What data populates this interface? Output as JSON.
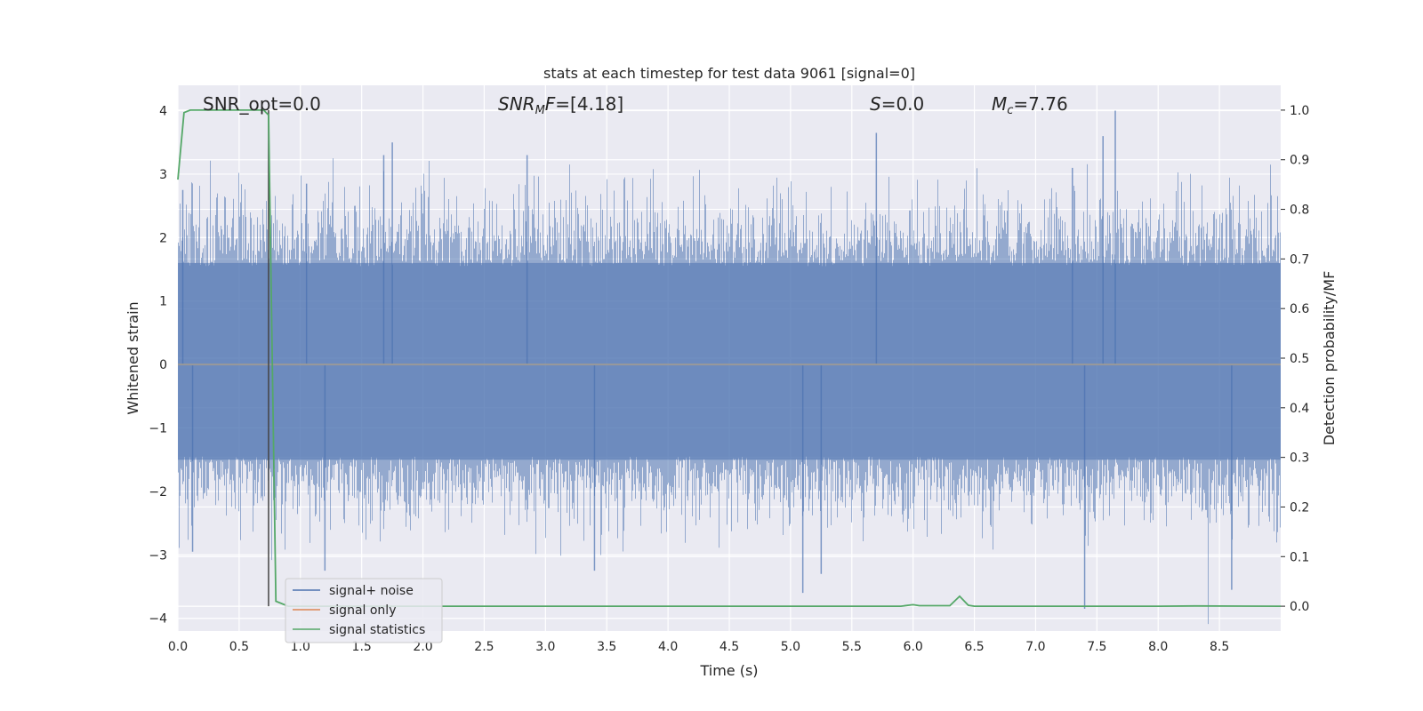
{
  "chart_data": {
    "type": "line",
    "title": "stats at each timestep for test data 9061 [signal=0]",
    "xlabel": "Time (s)",
    "ylabel": "Whitened strain",
    "y2label": "Detection probability/MF",
    "xlim": [
      0.0,
      9.0
    ],
    "ylim": [
      -4.2,
      4.4
    ],
    "y2lim": [
      -0.05,
      1.05
    ],
    "xticks": [
      "0.0",
      "0.5",
      "1.0",
      "1.5",
      "2.0",
      "2.5",
      "3.0",
      "3.5",
      "4.0",
      "4.5",
      "5.0",
      "5.5",
      "6.0",
      "6.5",
      "7.0",
      "7.5",
      "8.0",
      "8.5"
    ],
    "yticks": [
      "4",
      "3",
      "2",
      "1",
      "0",
      "−1",
      "−2",
      "−3",
      "−4"
    ],
    "y2ticks": [
      "1.0",
      "0.9",
      "0.8",
      "0.7",
      "0.6",
      "0.5",
      "0.4",
      "0.3",
      "0.2",
      "0.1",
      "0.0"
    ],
    "grid": true,
    "legend_position": "lower-left",
    "annotations": [
      {
        "name": "snr-opt",
        "text": "SNR_opt=0.0",
        "x": 0.2
      },
      {
        "name": "snr-mf",
        "text": "=[4.18]",
        "italic_prefix": "SNR",
        "subscript": "M",
        "italic_suffix": "F",
        "x": 2.6
      },
      {
        "name": "s-value",
        "text": "=0.0",
        "italic_prefix": "S",
        "x": 5.6
      },
      {
        "name": "mc-value",
        "text": "=7.76",
        "italic_prefix": "M",
        "subscript": "c",
        "x": 6.6
      }
    ],
    "series": [
      {
        "name": "signal+ noise",
        "color": "#4c72b0",
        "axis": "left",
        "sample_rate_hz": 2048,
        "envelope_note": "noise band roughly between -2.2 and 2.4 with peaks",
        "notable_peaks": [
          {
            "x": 0.04,
            "y": 2.75
          },
          {
            "x": 1.05,
            "y": 2.85
          },
          {
            "x": 1.68,
            "y": 3.3
          },
          {
            "x": 1.75,
            "y": 3.5
          },
          {
            "x": 2.85,
            "y": 3.3
          },
          {
            "x": 5.7,
            "y": 3.65
          },
          {
            "x": 7.55,
            "y": 3.6
          },
          {
            "x": 7.65,
            "y": 4.0
          },
          {
            "x": 7.3,
            "y": 3.1
          },
          {
            "x": 0.12,
            "y": -2.95
          },
          {
            "x": 1.2,
            "y": -3.25
          },
          {
            "x": 3.4,
            "y": -3.25
          },
          {
            "x": 5.1,
            "y": -3.6
          },
          {
            "x": 5.25,
            "y": -3.3
          },
          {
            "x": 7.4,
            "y": -3.85
          },
          {
            "x": 8.6,
            "y": -3.55
          }
        ]
      },
      {
        "name": "signal only",
        "color": "#dd8452",
        "axis": "left",
        "values_note": "zero everywhere (signal=0)"
      },
      {
        "name": "signal statistics",
        "color": "#55a868",
        "axis": "right",
        "x": [
          0.0,
          0.05,
          0.1,
          0.2,
          0.3,
          0.4,
          0.5,
          0.6,
          0.66,
          0.7,
          0.74,
          0.77,
          0.8,
          0.9,
          1.0,
          2.0,
          3.0,
          4.0,
          5.0,
          5.9,
          6.0,
          6.05,
          6.3,
          6.38,
          6.45,
          6.5,
          7.0,
          8.0,
          8.3,
          9.0
        ],
        "y": [
          0.86,
          0.995,
          1.0,
          1.0,
          1.0,
          1.0,
          1.0,
          1.0,
          1.0,
          1.0,
          0.99,
          0.5,
          0.01,
          0.0,
          0.0,
          0.0,
          0.0,
          0.0,
          0.0,
          0.0,
          0.003,
          0.001,
          0.001,
          0.02,
          0.002,
          0.0,
          0.0,
          0.0,
          0.0005,
          0.0
        ]
      }
    ],
    "vertical_marker": {
      "x": 0.74,
      "color": "#444444"
    }
  },
  "legend": {
    "items": [
      {
        "label": "signal+ noise",
        "color": "#4c72b0"
      },
      {
        "label": "signal only",
        "color": "#dd8452"
      },
      {
        "label": "signal statistics",
        "color": "#55a868"
      }
    ]
  },
  "style": {
    "axes_bg": "#eaeaf2",
    "grid_color": "#ffffff",
    "text_color": "#262626"
  }
}
